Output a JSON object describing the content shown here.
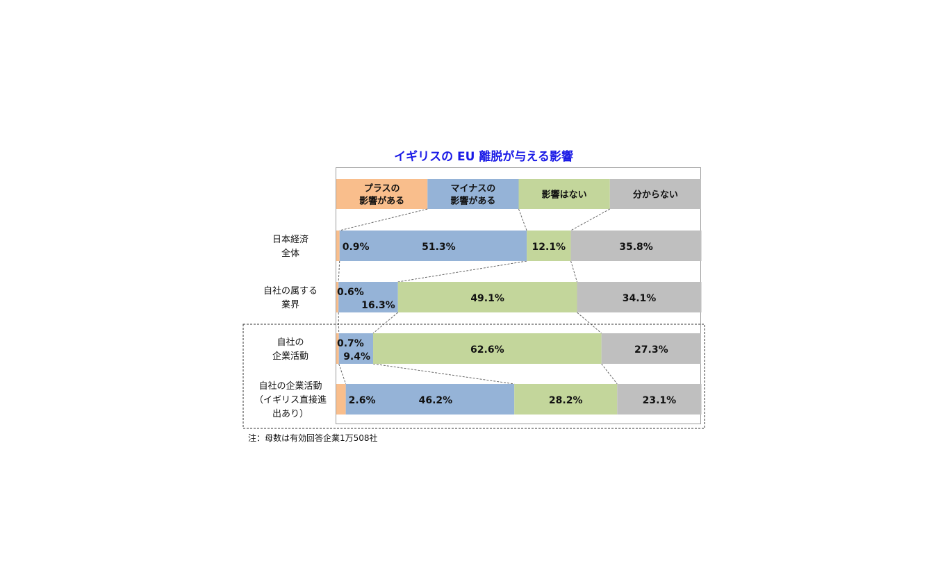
{
  "chart_data": {
    "type": "bar",
    "orientation": "horizontal",
    "stacked": true,
    "normalized": true,
    "title": "イギリスの EU 離脱が与える影響",
    "legend_placement": "top",
    "series": [
      {
        "name": "プラスの\n影響がある",
        "color": "#f9be8c",
        "values": [
          0.9,
          0.6,
          0.7,
          2.6
        ]
      },
      {
        "name": "マイナスの\n影響がある",
        "color": "#95b3d7",
        "values": [
          51.3,
          16.3,
          9.4,
          46.2
        ]
      },
      {
        "name": "影響はない",
        "color": "#c3d69b",
        "values": [
          12.1,
          49.1,
          62.6,
          28.2
        ]
      },
      {
        "name": "分からない",
        "color": "#bfbfbf",
        "values": [
          35.8,
          34.1,
          27.3,
          23.1
        ]
      }
    ],
    "categories": [
      {
        "lines": [
          "日本経済",
          "全体"
        ]
      },
      {
        "lines": [
          "自社の属する",
          "業界"
        ]
      },
      {
        "lines": [
          "自社の",
          "企業活動"
        ]
      },
      {
        "lines": [
          "自社の企業活動",
          "（イギリス直接進",
          "出あり）"
        ]
      }
    ],
    "value_labels": [
      [
        "0.9%",
        "51.3%",
        "12.1%",
        "35.8%"
      ],
      [
        "0.6%",
        "16.3%",
        "49.1%",
        "34.1%"
      ],
      [
        "0.7%",
        "9.4%",
        "62.6%",
        "27.3%"
      ],
      [
        "2.6%",
        "46.2%",
        "28.2%",
        "23.1%"
      ]
    ],
    "unit": "%",
    "xlim": [
      0,
      100
    ],
    "note": "注：母数は有効回答企業1万508社"
  }
}
